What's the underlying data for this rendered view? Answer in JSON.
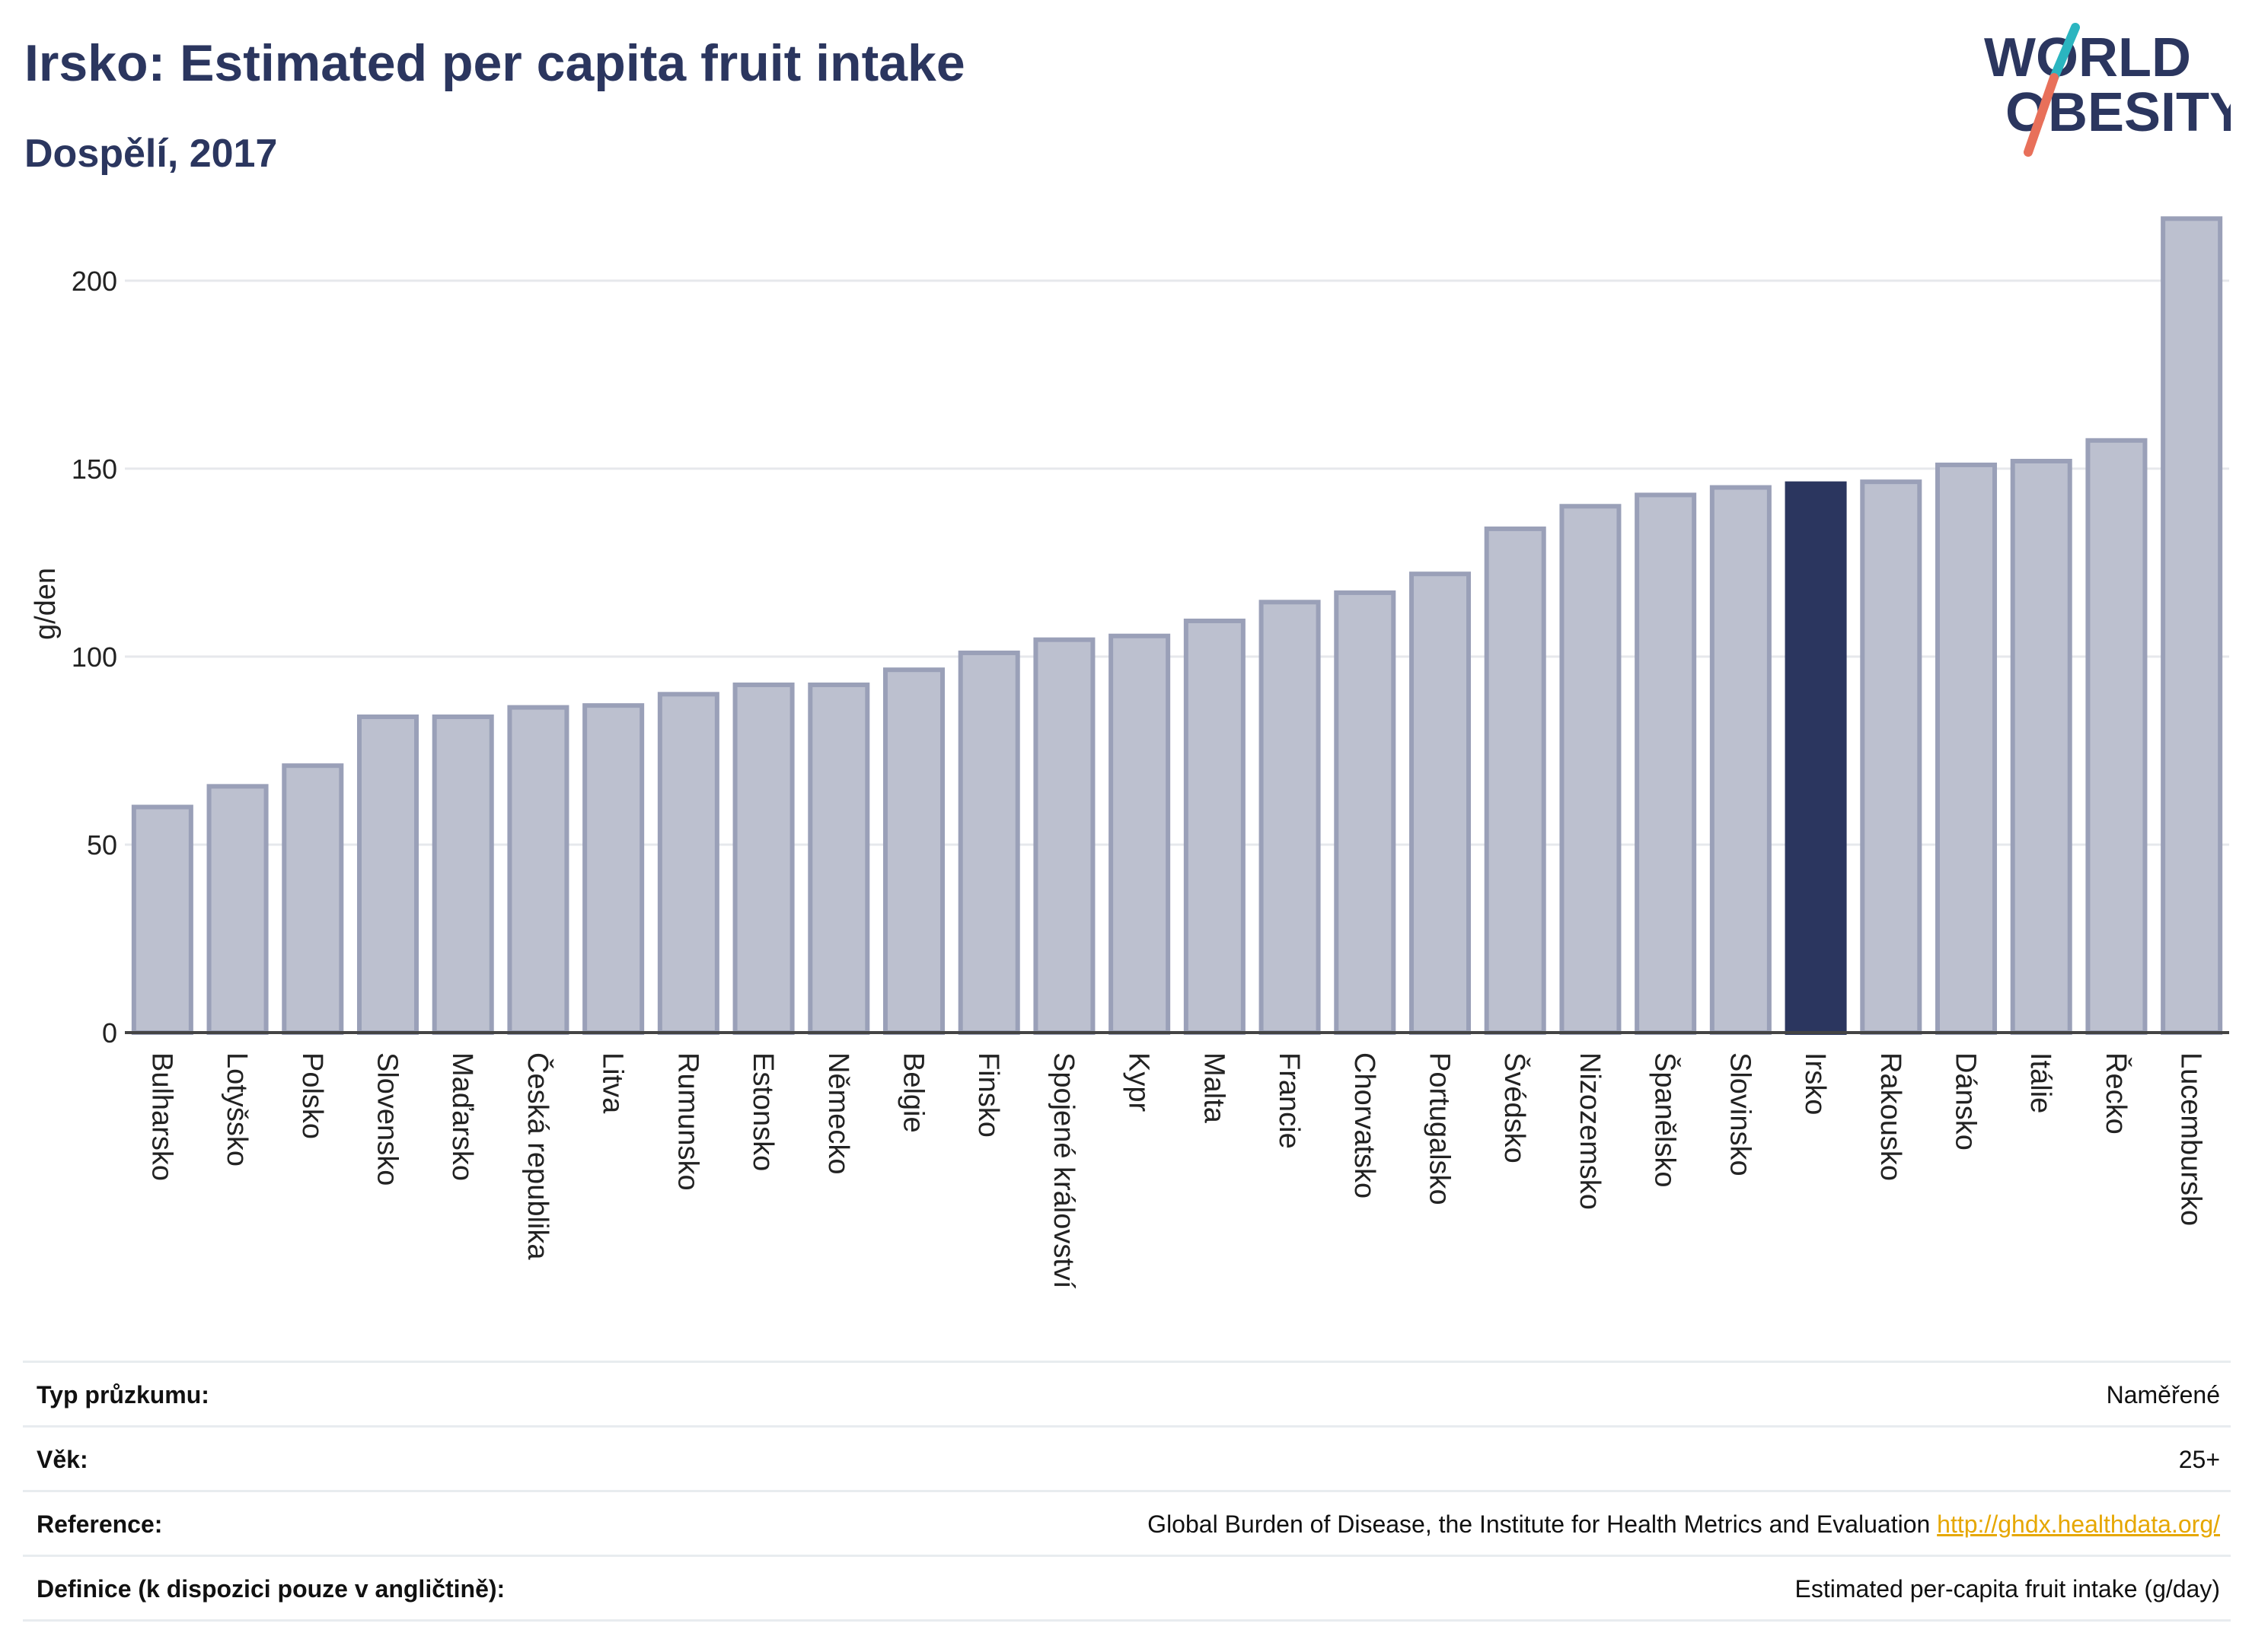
{
  "header": {
    "title": "Irsko: Estimated per capita fruit intake",
    "subtitle": "Dospělí, 2017"
  },
  "logo": {
    "line1": "WORLD",
    "line2": "OBESITY",
    "text_color": "#2b365f",
    "slash_colors": [
      "#2bb5c0",
      "#e8705a"
    ]
  },
  "colors": {
    "bar": "#bcc0cf",
    "bar_border": "#9aa0b8",
    "highlight": "#2b365f",
    "grid": "#e6e8ec",
    "baseline": "#444444"
  },
  "chart_data": {
    "type": "bar",
    "ylabel": "g/den",
    "ylim": [
      0,
      220
    ],
    "yticks": [
      0,
      50,
      100,
      150,
      200
    ],
    "grid": true,
    "highlight": "Irsko",
    "categories": [
      "Bulharsko",
      "Lotyšsko",
      "Polsko",
      "Slovensko",
      "Maďarsko",
      "Česká republika",
      "Litva",
      "Rumunsko",
      "Estonsko",
      "Německo",
      "Belgie",
      "Finsko",
      "Spojené království",
      "Kypr",
      "Malta",
      "Francie",
      "Chorvatsko",
      "Portugalsko",
      "Švédsko",
      "Nizozemsko",
      "Španělsko",
      "Slovinsko",
      "Irsko",
      "Rakousko",
      "Dánsko",
      "Itálie",
      "Řecko",
      "Lucembursko"
    ],
    "values": [
      60,
      65.5,
      71,
      84,
      84,
      86.5,
      87,
      90,
      92.5,
      92.5,
      96.5,
      101,
      104.5,
      105.5,
      109.5,
      114.5,
      117,
      122,
      134,
      140,
      143,
      145,
      146,
      146.5,
      151,
      152,
      157.5,
      216.5
    ]
  },
  "details": {
    "survey_type_label": "Typ průzkumu:",
    "survey_type_value": "Naměřené",
    "age_label": "Věk:",
    "age_value": "25+",
    "reference_label": "Reference:",
    "reference_text": "Global Burden of Disease, the Institute for Health Metrics and Evaluation",
    "reference_link": "http://ghdx.healthdata.org/",
    "definition_label": "Definice (k dispozici pouze v angličtině):",
    "definition_value": "Estimated per-capita fruit intake (g/day)"
  }
}
